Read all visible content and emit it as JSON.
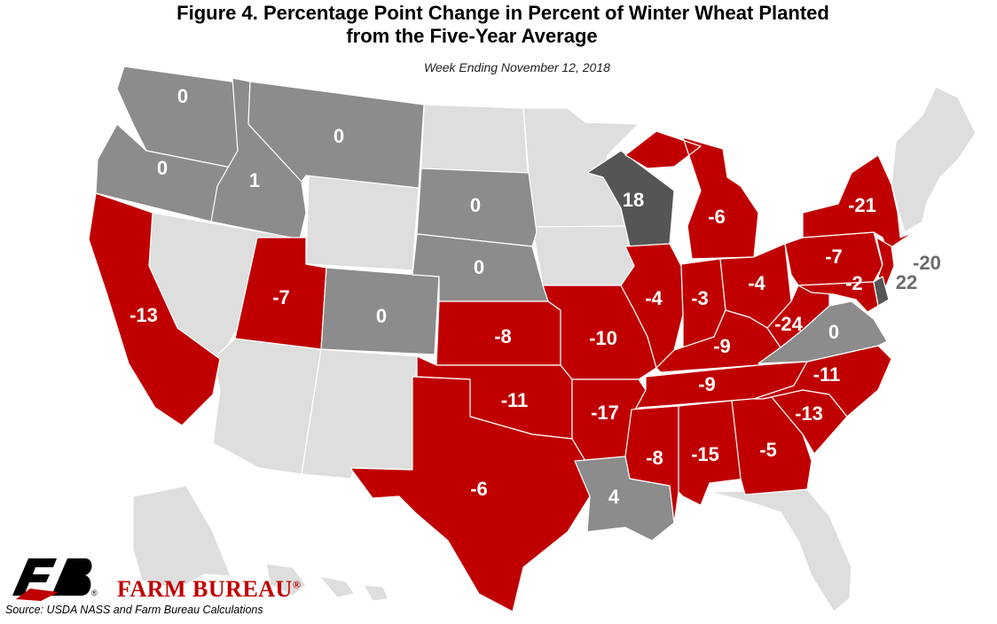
{
  "header": {
    "title_line1": "Figure 4. Percentage Point Change in Percent of Winter Wheat Planted",
    "title_line2": "from the Five-Year Average",
    "subtitle": "Week Ending November 12, 2018"
  },
  "legend_colors": {
    "negative": "#c00000",
    "zero_or_small": "#8c8c8c",
    "large_positive": "#555555",
    "no_data": "#dedede"
  },
  "states": [
    {
      "id": "WA",
      "value": "0",
      "category": "zero_or_small"
    },
    {
      "id": "OR",
      "value": "0",
      "category": "zero_or_small"
    },
    {
      "id": "ID",
      "value": "1",
      "category": "zero_or_small"
    },
    {
      "id": "MT",
      "value": "0",
      "category": "zero_or_small"
    },
    {
      "id": "CA",
      "value": "-13",
      "category": "negative"
    },
    {
      "id": "UT",
      "value": "-7",
      "category": "negative"
    },
    {
      "id": "CO",
      "value": "0",
      "category": "zero_or_small"
    },
    {
      "id": "SD",
      "value": "0",
      "category": "zero_or_small"
    },
    {
      "id": "NE",
      "value": "0",
      "category": "zero_or_small"
    },
    {
      "id": "KS",
      "value": "-8",
      "category": "negative"
    },
    {
      "id": "OK",
      "value": "-11",
      "category": "negative"
    },
    {
      "id": "TX",
      "value": "-6",
      "category": "negative"
    },
    {
      "id": "MO",
      "value": "-10",
      "category": "negative"
    },
    {
      "id": "AR",
      "value": "-17",
      "category": "negative"
    },
    {
      "id": "LA",
      "value": "4",
      "category": "zero_or_small"
    },
    {
      "id": "WI",
      "value": "18",
      "category": "large_positive"
    },
    {
      "id": "IL",
      "value": "-4",
      "category": "negative"
    },
    {
      "id": "MI",
      "value": "-6",
      "category": "negative"
    },
    {
      "id": "IN",
      "value": "-3",
      "category": "negative"
    },
    {
      "id": "OH",
      "value": "-4",
      "category": "negative"
    },
    {
      "id": "KY",
      "value": "-9",
      "category": "negative"
    },
    {
      "id": "TN",
      "value": "-9",
      "category": "negative"
    },
    {
      "id": "MS",
      "value": "-8",
      "category": "negative"
    },
    {
      "id": "AL",
      "value": "-15",
      "category": "negative"
    },
    {
      "id": "GA",
      "value": "-5",
      "category": "negative"
    },
    {
      "id": "SC",
      "value": "-13",
      "category": "negative"
    },
    {
      "id": "NC",
      "value": "-11",
      "category": "negative"
    },
    {
      "id": "VA",
      "value": "0",
      "category": "zero_or_small"
    },
    {
      "id": "WV",
      "value": "-24",
      "category": "negative"
    },
    {
      "id": "PA",
      "value": "-7",
      "category": "negative"
    },
    {
      "id": "NY",
      "value": "-21",
      "category": "negative"
    },
    {
      "id": "MD",
      "value": "-2",
      "category": "negative"
    },
    {
      "id": "NJ",
      "value": "-20",
      "category": "negative"
    },
    {
      "id": "DE",
      "value": "22",
      "category": "large_positive"
    }
  ],
  "footer": {
    "brand": "FARM BUREAU",
    "brand_mark": "®",
    "logo_mark": "®",
    "source": "Source: USDA NASS and Farm Bureau Calculations"
  }
}
